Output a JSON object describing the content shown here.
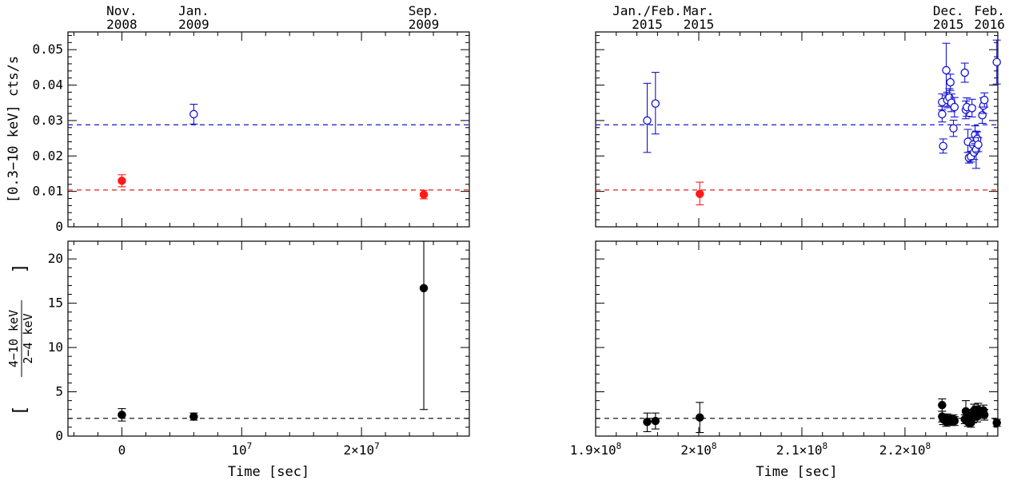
{
  "chart_data": [
    {
      "type": "scatter",
      "panel": "top-left",
      "ylabel": "[0.3−10 keV] cts/s",
      "xlim": [
        -4500000,
        29000000
      ],
      "ylim": [
        0,
        0.055
      ],
      "yticks": [
        0,
        0.01,
        0.02,
        0.03,
        0.04,
        0.05
      ],
      "ytick_labels": [
        "0",
        "0.01",
        "0.02",
        "0.03",
        "0.04",
        "0.05"
      ],
      "top_axis_labels": [
        {
          "line1": "Nov.",
          "line2": "2008",
          "x": 0
        },
        {
          "line1": "Jan.",
          "line2": "2009",
          "x": 6000000
        },
        {
          "line1": "Sep.",
          "line2": "2009",
          "x": 25200000
        }
      ],
      "hlines": [
        {
          "y": 0.0288,
          "color": "#1515d0",
          "style": "dashed"
        },
        {
          "y": 0.0104,
          "color": "#e02020",
          "style": "dashed"
        }
      ],
      "series": [
        {
          "marker": "filled",
          "color": "#ff1a1a",
          "points": [
            {
              "x": 0,
              "y": 0.013,
              "ylo": 0.0113,
              "yhi": 0.0147
            },
            {
              "x": 25200000,
              "y": 0.0091,
              "ylo": 0.0079,
              "yhi": 0.0103
            }
          ]
        },
        {
          "marker": "open",
          "color": "#1515d0",
          "points": [
            {
              "x": 6000000,
              "y": 0.0318,
              "ylo": 0.029,
              "yhi": 0.0346
            }
          ]
        }
      ]
    },
    {
      "type": "scatter",
      "panel": "top-right",
      "xlim": [
        190000000,
        229000000
      ],
      "ylim": [
        0,
        0.055
      ],
      "top_axis_labels": [
        {
          "line1": "Jan./Feb.",
          "line2": "2015",
          "x": 195000000
        },
        {
          "line1": "Mar.",
          "line2": "2015",
          "x": 200000000
        },
        {
          "line1": "Dec.",
          "line2": "2015",
          "x": 224200000
        },
        {
          "line1": "Feb.",
          "line2": "2016",
          "x": 228200000
        }
      ],
      "hlines": [
        {
          "y": 0.0288,
          "color": "#1515d0",
          "style": "dashed"
        },
        {
          "y": 0.0104,
          "color": "#e02020",
          "style": "dashed"
        }
      ],
      "series": [
        {
          "marker": "filled",
          "color": "#ff1a1a",
          "points": [
            {
              "x": 200100000,
              "y": 0.0093,
              "ylo": 0.0062,
              "yhi": 0.0126
            }
          ]
        },
        {
          "marker": "open",
          "color": "#1515d0",
          "points": [
            {
              "x": 195000000,
              "y": 0.03,
              "ylo": 0.021,
              "yhi": 0.0405
            },
            {
              "x": 195800000,
              "y": 0.0348,
              "ylo": 0.0262,
              "yhi": 0.0436
            },
            {
              "x": 223600000,
              "y": 0.0352,
              "ylo": 0.033,
              "yhi": 0.0375
            },
            {
              "x": 223600000,
              "y": 0.0318,
              "ylo": 0.0296,
              "yhi": 0.034
            },
            {
              "x": 223700000,
              "y": 0.0228,
              "ylo": 0.0208,
              "yhi": 0.0248
            },
            {
              "x": 224000000,
              "y": 0.0442,
              "ylo": 0.037,
              "yhi": 0.0518
            },
            {
              "x": 224100000,
              "y": 0.0358,
              "ylo": 0.0336,
              "yhi": 0.038
            },
            {
              "x": 224300000,
              "y": 0.0365,
              "ylo": 0.034,
              "yhi": 0.039
            },
            {
              "x": 224400000,
              "y": 0.0408,
              "ylo": 0.0385,
              "yhi": 0.0431
            },
            {
              "x": 224500000,
              "y": 0.035,
              "ylo": 0.0325,
              "yhi": 0.0375
            },
            {
              "x": 224700000,
              "y": 0.0278,
              "ylo": 0.0255,
              "yhi": 0.0301
            },
            {
              "x": 224800000,
              "y": 0.0338,
              "ylo": 0.031,
              "yhi": 0.0365
            },
            {
              "x": 225800000,
              "y": 0.0435,
              "ylo": 0.0408,
              "yhi": 0.0462
            },
            {
              "x": 225900000,
              "y": 0.033,
              "ylo": 0.0305,
              "yhi": 0.0355
            },
            {
              "x": 226000000,
              "y": 0.0338,
              "ylo": 0.0312,
              "yhi": 0.0364
            },
            {
              "x": 226100000,
              "y": 0.024,
              "ylo": 0.021,
              "yhi": 0.0275
            },
            {
              "x": 226200000,
              "y": 0.0195,
              "ylo": 0.018,
              "yhi": 0.021
            },
            {
              "x": 226400000,
              "y": 0.0198,
              "ylo": 0.0183,
              "yhi": 0.0213
            },
            {
              "x": 226500000,
              "y": 0.0335,
              "ylo": 0.031,
              "yhi": 0.036
            },
            {
              "x": 226600000,
              "y": 0.0232,
              "ylo": 0.0212,
              "yhi": 0.0252
            },
            {
              "x": 226700000,
              "y": 0.021,
              "ylo": 0.019,
              "yhi": 0.023
            },
            {
              "x": 226800000,
              "y": 0.026,
              "ylo": 0.0235,
              "yhi": 0.0285
            },
            {
              "x": 226900000,
              "y": 0.0218,
              "ylo": 0.0165,
              "yhi": 0.027
            },
            {
              "x": 227000000,
              "y": 0.0248,
              "ylo": 0.0228,
              "yhi": 0.0268
            },
            {
              "x": 227100000,
              "y": 0.0232,
              "ylo": 0.0212,
              "yhi": 0.0252
            },
            {
              "x": 227500000,
              "y": 0.0315,
              "ylo": 0.0292,
              "yhi": 0.0338
            },
            {
              "x": 227600000,
              "y": 0.0342,
              "ylo": 0.032,
              "yhi": 0.0364
            },
            {
              "x": 227700000,
              "y": 0.0358,
              "ylo": 0.0338,
              "yhi": 0.0378
            },
            {
              "x": 228900000,
              "y": 0.0465,
              "ylo": 0.0403,
              "yhi": 0.0527
            }
          ]
        }
      ]
    },
    {
      "type": "scatter",
      "panel": "bottom-left",
      "xlabel": "Time [sec]",
      "ylabel_numerator": "4−10 keV",
      "ylabel_denominator": "2−4 keV",
      "xlim": [
        -4500000,
        29000000
      ],
      "ylim": [
        0,
        22
      ],
      "yticks": [
        0,
        5,
        10,
        15,
        20
      ],
      "ytick_labels": [
        "0",
        "5",
        "10",
        "15",
        "20"
      ],
      "xticks": [
        0,
        10000000,
        20000000
      ],
      "xtick_labels": [
        {
          "base": "0",
          "exp": ""
        },
        {
          "base": "10",
          "exp": "7"
        },
        {
          "base": "2×10",
          "exp": "7"
        }
      ],
      "hlines": [
        {
          "y": 2.0,
          "color": "#000000",
          "style": "dashed"
        }
      ],
      "series": [
        {
          "marker": "filled",
          "color": "#000000",
          "points": [
            {
              "x": 0,
              "y": 2.4,
              "ylo": 1.7,
              "yhi": 3.1
            },
            {
              "x": 6000000,
              "y": 2.2,
              "ylo": 1.8,
              "yhi": 2.6
            },
            {
              "x": 25200000,
              "y": 16.7,
              "ylo": 3.0,
              "yhi": 22.0
            }
          ]
        }
      ]
    },
    {
      "type": "scatter",
      "panel": "bottom-right",
      "xlabel": "Time [sec]",
      "xlim": [
        190000000,
        229000000
      ],
      "ylim": [
        0,
        22
      ],
      "xticks": [
        190000000,
        200000000,
        210000000,
        220000000
      ],
      "xtick_labels": [
        {
          "base": "1.9×10",
          "exp": "8"
        },
        {
          "base": "2×10",
          "exp": "8"
        },
        {
          "base": "2.1×10",
          "exp": "8"
        },
        {
          "base": "2.2×10",
          "exp": "8"
        }
      ],
      "hlines": [
        {
          "y": 2.0,
          "color": "#000000",
          "style": "dashed"
        }
      ],
      "series": [
        {
          "marker": "filled",
          "color": "#000000",
          "points": [
            {
              "x": 195000000,
              "y": 1.6,
              "ylo": 0.5,
              "yhi": 2.6
            },
            {
              "x": 195800000,
              "y": 1.7,
              "ylo": 0.8,
              "yhi": 2.6
            },
            {
              "x": 200100000,
              "y": 2.1,
              "ylo": 0.4,
              "yhi": 3.8
            },
            {
              "x": 223600000,
              "y": 3.5,
              "ylo": 2.8,
              "yhi": 4.2
            },
            {
              "x": 223600000,
              "y": 2.2,
              "ylo": 1.6,
              "yhi": 2.8
            },
            {
              "x": 223700000,
              "y": 1.9,
              "ylo": 1.3,
              "yhi": 2.5
            },
            {
              "x": 224000000,
              "y": 1.6,
              "ylo": 1.1,
              "yhi": 2.1
            },
            {
              "x": 224100000,
              "y": 2.0,
              "ylo": 1.5,
              "yhi": 2.5
            },
            {
              "x": 224300000,
              "y": 1.8,
              "ylo": 1.3,
              "yhi": 2.3
            },
            {
              "x": 224500000,
              "y": 1.7,
              "ylo": 1.2,
              "yhi": 2.2
            },
            {
              "x": 224700000,
              "y": 1.9,
              "ylo": 1.4,
              "yhi": 2.4
            },
            {
              "x": 224800000,
              "y": 1.7,
              "ylo": 1.2,
              "yhi": 2.2
            },
            {
              "x": 225800000,
              "y": 1.9,
              "ylo": 1.4,
              "yhi": 2.4
            },
            {
              "x": 225900000,
              "y": 2.8,
              "ylo": 1.6,
              "yhi": 4.0
            },
            {
              "x": 226000000,
              "y": 2.0,
              "ylo": 1.5,
              "yhi": 2.5
            },
            {
              "x": 226100000,
              "y": 1.6,
              "ylo": 1.1,
              "yhi": 2.1
            },
            {
              "x": 226200000,
              "y": 1.8,
              "ylo": 1.3,
              "yhi": 2.3
            },
            {
              "x": 226400000,
              "y": 1.5,
              "ylo": 1.0,
              "yhi": 2.0
            },
            {
              "x": 226500000,
              "y": 2.3,
              "ylo": 1.6,
              "yhi": 3.0
            },
            {
              "x": 226600000,
              "y": 2.1,
              "ylo": 1.5,
              "yhi": 2.7
            },
            {
              "x": 226700000,
              "y": 2.9,
              "ylo": 2.2,
              "yhi": 3.6
            },
            {
              "x": 226800000,
              "y": 2.4,
              "ylo": 1.8,
              "yhi": 3.0
            },
            {
              "x": 226900000,
              "y": 2.7,
              "ylo": 2.0,
              "yhi": 3.4
            },
            {
              "x": 227000000,
              "y": 2.2,
              "ylo": 1.6,
              "yhi": 2.8
            },
            {
              "x": 227100000,
              "y": 3.0,
              "ylo": 2.3,
              "yhi": 3.7
            },
            {
              "x": 227500000,
              "y": 2.6,
              "ylo": 2.0,
              "yhi": 3.2
            },
            {
              "x": 227600000,
              "y": 2.9,
              "ylo": 2.3,
              "yhi": 3.5
            },
            {
              "x": 227700000,
              "y": 2.4,
              "ylo": 1.8,
              "yhi": 3.0
            },
            {
              "x": 228900000,
              "y": 1.5,
              "ylo": 1.1,
              "yhi": 1.9
            }
          ]
        }
      ]
    }
  ]
}
